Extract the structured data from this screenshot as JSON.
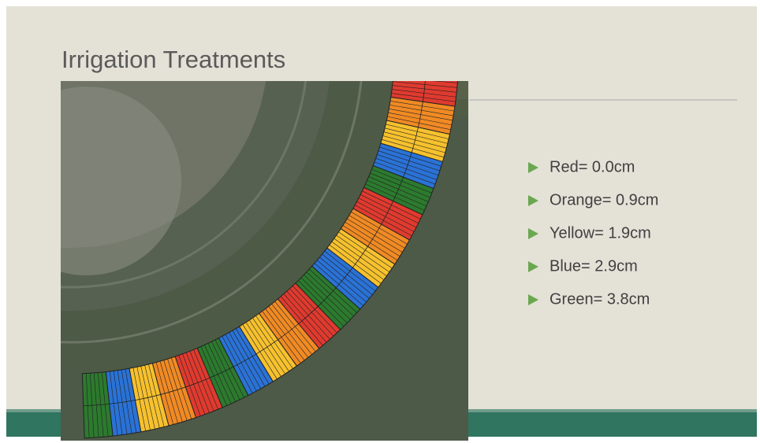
{
  "header": {
    "title": "Irrigation Treatments"
  },
  "bullets": [
    "Red= 0.0cm",
    "Orange= 0.9cm",
    "Yellow= 1.9cm",
    "Blue= 2.9cm",
    "Green= 3.8cm"
  ]
}
